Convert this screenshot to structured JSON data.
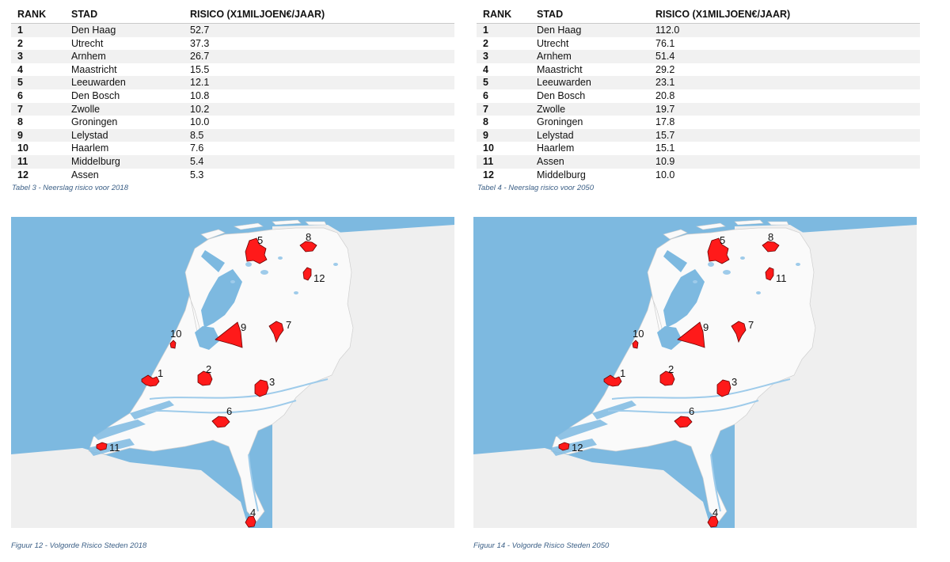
{
  "tables": [
    {
      "headers": {
        "rank": "RANK",
        "city": "STAD",
        "risk": "RISICO (X1MILJOEN€/JAAR)"
      },
      "rows": [
        {
          "rank": "1",
          "city": "Den Haag",
          "risk": "52.7"
        },
        {
          "rank": "2",
          "city": "Utrecht",
          "risk": "37.3"
        },
        {
          "rank": "3",
          "city": "Arnhem",
          "risk": "26.7"
        },
        {
          "rank": "4",
          "city": "Maastricht",
          "risk": "15.5"
        },
        {
          "rank": "5",
          "city": "Leeuwarden",
          "risk": "12.1"
        },
        {
          "rank": "6",
          "city": "Den Bosch",
          "risk": "10.8"
        },
        {
          "rank": "7",
          "city": "Zwolle",
          "risk": "10.2"
        },
        {
          "rank": "8",
          "city": "Groningen",
          "risk": "10.0"
        },
        {
          "rank": "9",
          "city": "Lelystad",
          "risk": "8.5"
        },
        {
          "rank": "10",
          "city": "Haarlem",
          "risk": "7.6"
        },
        {
          "rank": "11",
          "city": "Middelburg",
          "risk": "5.4"
        },
        {
          "rank": "12",
          "city": "Assen",
          "risk": "5.3"
        }
      ],
      "caption": "Tabel 3 - Neerslag risico voor 2018"
    },
    {
      "headers": {
        "rank": "RANK",
        "city": "STAD",
        "risk": "RISICO (X1MILJOEN€/JAAR)"
      },
      "rows": [
        {
          "rank": "1",
          "city": "Den Haag",
          "risk": "112.0"
        },
        {
          "rank": "2",
          "city": "Utrecht",
          "risk": "76.1"
        },
        {
          "rank": "3",
          "city": "Arnhem",
          "risk": "51.4"
        },
        {
          "rank": "4",
          "city": "Maastricht",
          "risk": "29.2"
        },
        {
          "rank": "5",
          "city": "Leeuwarden",
          "risk": "23.1"
        },
        {
          "rank": "6",
          "city": "Den Bosch",
          "risk": "20.8"
        },
        {
          "rank": "7",
          "city": "Zwolle",
          "risk": "19.7"
        },
        {
          "rank": "8",
          "city": "Groningen",
          "risk": "17.8"
        },
        {
          "rank": "9",
          "city": "Lelystad",
          "risk": "15.7"
        },
        {
          "rank": "10",
          "city": "Haarlem",
          "risk": "15.1"
        },
        {
          "rank": "11",
          "city": "Assen",
          "risk": "10.9"
        },
        {
          "rank": "12",
          "city": "Middelburg",
          "risk": "10.0"
        }
      ],
      "caption": "Tabel 4 - Neerslag risico voor 2050"
    }
  ],
  "maps": [
    {
      "caption": "Figuur 12 - Volgorde Risico Steden 2018",
      "labels": {
        "haag": "1",
        "utrecht": "2",
        "arnhem": "3",
        "maastricht": "4",
        "leeuwarden": "5",
        "bosch": "6",
        "zwolle": "7",
        "groningen": "8",
        "lelystad": "9",
        "haarlem": "10",
        "middelburg": "11",
        "assen": "12"
      }
    },
    {
      "caption": "Figuur 14 - Volgorde Risico Steden 2050",
      "labels": {
        "haag": "1",
        "utrecht": "2",
        "arnhem": "3",
        "maastricht": "4",
        "leeuwarden": "5",
        "bosch": "6",
        "zwolle": "7",
        "groningen": "8",
        "lelystad": "9",
        "haarlem": "10",
        "middelburg": "12",
        "assen": "11"
      }
    }
  ],
  "colors": {
    "sea": "#7db9e0",
    "land": "#fafafa",
    "background": "#efefef",
    "city": "#ff1a1a"
  }
}
